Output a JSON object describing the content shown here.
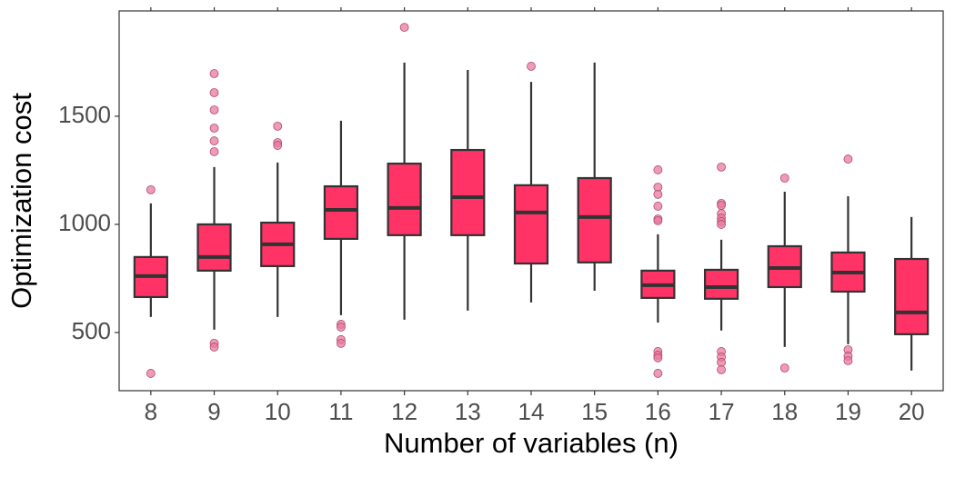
{
  "chart_data": {
    "type": "box",
    "x_label": "Number of variables (n)",
    "y_label": "Optimization cost",
    "color": "#ff3366",
    "outlier_color": "#e8799c",
    "ylim": [
      231,
      1987
    ],
    "yticks": [
      500,
      1000,
      1500
    ],
    "grid": false,
    "boxes": [
      {
        "category": "8",
        "whislo": 572,
        "q1": 664,
        "med": 761,
        "q3": 849,
        "whishi": 1097,
        "outliers": [
          1160,
          311
        ]
      },
      {
        "category": "9",
        "whislo": 513,
        "q1": 786,
        "med": 849,
        "q3": 1000,
        "whishi": 1265,
        "outliers": [
          1697,
          1609,
          1529,
          1445,
          1386,
          1336,
          450,
          433
        ]
      },
      {
        "category": "10",
        "whislo": 572,
        "q1": 807,
        "med": 908,
        "q3": 1008,
        "whishi": 1286,
        "outliers": [
          1454,
          1378,
          1365
        ]
      },
      {
        "category": "11",
        "whislo": 580,
        "q1": 933,
        "med": 1067,
        "q3": 1176,
        "whishi": 1479,
        "outliers": [
          538,
          525,
          467,
          450
        ]
      },
      {
        "category": "12",
        "whislo": 559,
        "q1": 950,
        "med": 1076,
        "q3": 1281,
        "whishi": 1748,
        "outliers": [
          1911
        ]
      },
      {
        "category": "13",
        "whislo": 601,
        "q1": 950,
        "med": 1126,
        "q3": 1344,
        "whishi": 1714,
        "outliers": []
      },
      {
        "category": "14",
        "whislo": 639,
        "q1": 819,
        "med": 1055,
        "q3": 1181,
        "whishi": 1659,
        "outliers": [
          1731
        ]
      },
      {
        "category": "15",
        "whislo": 693,
        "q1": 824,
        "med": 1034,
        "q3": 1214,
        "whishi": 1748,
        "outliers": []
      },
      {
        "category": "16",
        "whislo": 546,
        "q1": 660,
        "med": 719,
        "q3": 786,
        "whishi": 954,
        "outliers": [
          1252,
          1172,
          1139,
          1084,
          1025,
          1017,
          412,
          395,
          383,
          311
        ]
      },
      {
        "category": "17",
        "whislo": 509,
        "q1": 656,
        "med": 710,
        "q3": 790,
        "whishi": 929,
        "outliers": [
          1265,
          1097,
          1088,
          1050,
          1029,
          1013,
          1000,
          412,
          387,
          362,
          328
        ]
      },
      {
        "category": "18",
        "whislo": 433,
        "q1": 710,
        "med": 798,
        "q3": 899,
        "whishi": 1151,
        "outliers": [
          1214,
          336
        ]
      },
      {
        "category": "19",
        "whislo": 446,
        "q1": 689,
        "med": 777,
        "q3": 870,
        "whishi": 1130,
        "outliers": [
          1302,
          420,
          391,
          370
        ]
      },
      {
        "category": "20",
        "whislo": 324,
        "q1": 492,
        "med": 593,
        "q3": 840,
        "whishi": 1034,
        "outliers": []
      }
    ]
  }
}
